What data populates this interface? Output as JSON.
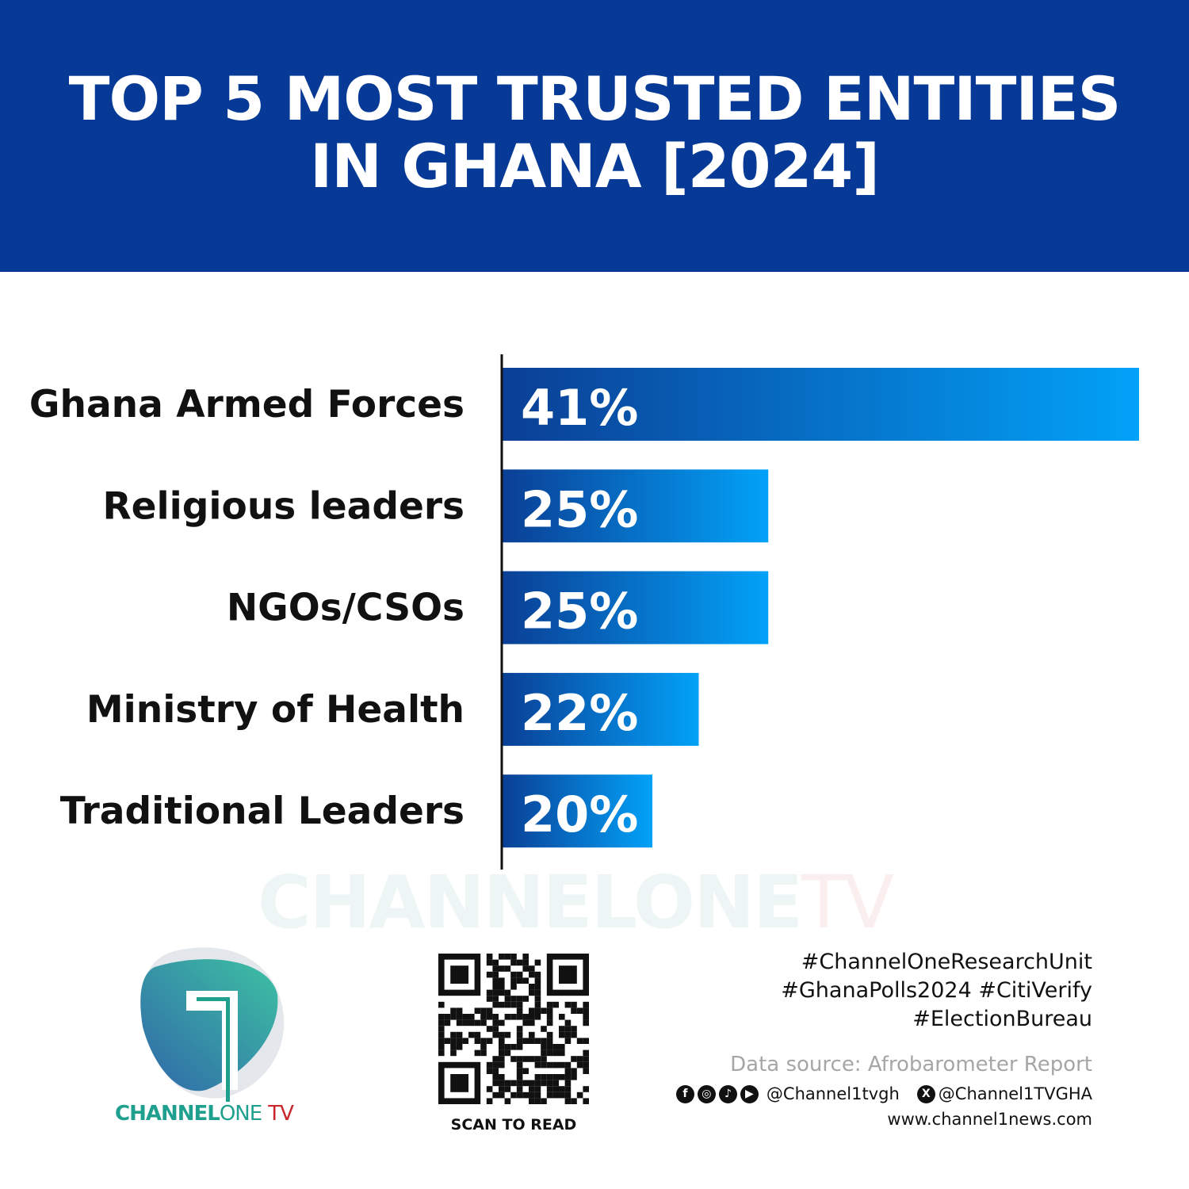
{
  "header": {
    "title_line1": "TOP 5 MOST TRUSTED ENTITIES",
    "title_line2": "IN GHANA [2024]",
    "background": "#063a96"
  },
  "chart_data": {
    "type": "bar",
    "orientation": "horizontal",
    "title": "TOP 5 MOST TRUSTED ENTITIES IN GHANA [2024]",
    "categories": [
      "Ghana Armed Forces",
      "Religious leaders",
      "NGOs/CSOs",
      "Ministry of Health",
      "Traditional Leaders"
    ],
    "values": [
      41,
      25,
      25,
      22,
      20
    ],
    "data_labels": [
      "41%",
      "25%",
      "25%",
      "22%",
      "20%"
    ],
    "unit": "%",
    "grid": false,
    "legend": "none",
    "bar_gradient": [
      "#0a3f95",
      "#02a2f8"
    ]
  },
  "watermark": {
    "brand": "CHANNELONE",
    "suffix": "TV"
  },
  "logo": {
    "part1": "CHANNEL",
    "part2": "ONE",
    "part3": "TV"
  },
  "qr": {
    "caption": "SCAN TO READ"
  },
  "footer": {
    "hashtags": [
      "#ChannelOneResearchUnit",
      "#GhanaPolls2024 #CitiVerify",
      "#ElectionBureau"
    ],
    "source": "Data source: Afrobarometer Report",
    "social_icons": [
      "facebook-icon",
      "instagram-icon",
      "tiktok-icon",
      "youtube-icon"
    ],
    "handle1": "@Channel1tvgh",
    "handle2": "@Channel1TVGHA",
    "website": "www.channel1news.com"
  }
}
